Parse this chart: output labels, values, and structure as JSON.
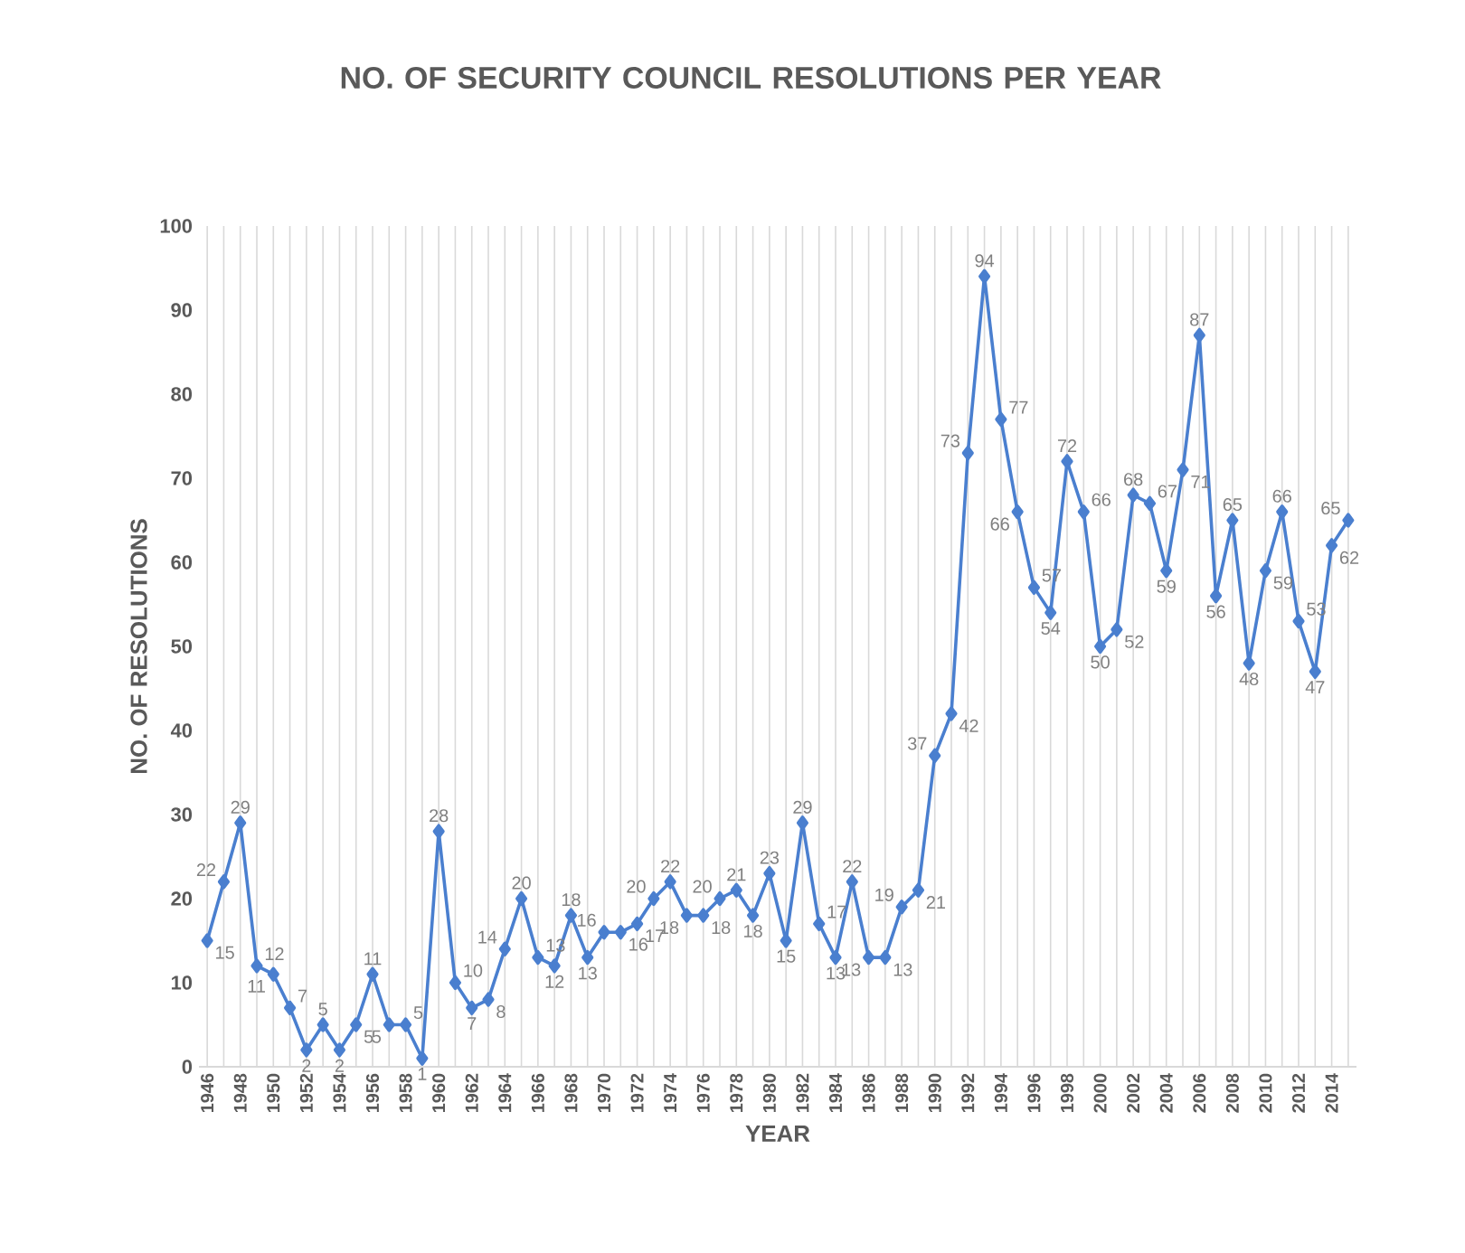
{
  "chart_data": {
    "type": "line",
    "title": "NO. OF SECURITY COUNCIL RESOLUTIONS PER YEAR",
    "xlabel": "YEAR",
    "ylabel": "NO. OF RESOLUTIONS",
    "categories": [
      "1946",
      null,
      "1948",
      null,
      "1950",
      null,
      "1952",
      null,
      "1954",
      null,
      "1956",
      null,
      "1958",
      null,
      "1960",
      null,
      "1962",
      null,
      "1964",
      null,
      "1966",
      null,
      "1968",
      null,
      "1970",
      null,
      "1972",
      null,
      "1974",
      null,
      "1976",
      null,
      "1978",
      null,
      "1980",
      null,
      "1982",
      null,
      "1984",
      null,
      "1986",
      null,
      "1988",
      null,
      "1990",
      null,
      "1992",
      null,
      "1994",
      null,
      "1996",
      null,
      "1998",
      null,
      "2000",
      null,
      "2002",
      null,
      "2004",
      null,
      "2006",
      null,
      "2008",
      null,
      "2010",
      null,
      "2012",
      null,
      "2014",
      null
    ],
    "values": [
      15,
      22,
      29,
      12,
      11,
      7,
      2,
      5,
      2,
      5,
      11,
      5,
      5,
      1,
      28,
      10,
      7,
      8,
      14,
      20,
      13,
      12,
      18,
      13,
      16,
      16,
      17,
      20,
      22,
      18,
      18,
      20,
      21,
      18,
      23,
      15,
      29,
      17,
      13,
      22,
      13,
      13,
      19,
      21,
      37,
      42,
      73,
      94,
      77,
      66,
      57,
      54,
      72,
      66,
      50,
      52,
      68,
      67,
      59,
      71,
      87,
      56,
      65,
      48,
      59,
      66,
      53,
      47,
      62,
      65
    ],
    "color": "#4a7fcf",
    "ylim": [
      0,
      100
    ],
    "yticks": [
      0,
      10,
      20,
      30,
      40,
      50,
      60,
      70,
      80,
      90,
      100
    ],
    "grid": "x",
    "marker": "diamond",
    "data_labels": true
  }
}
